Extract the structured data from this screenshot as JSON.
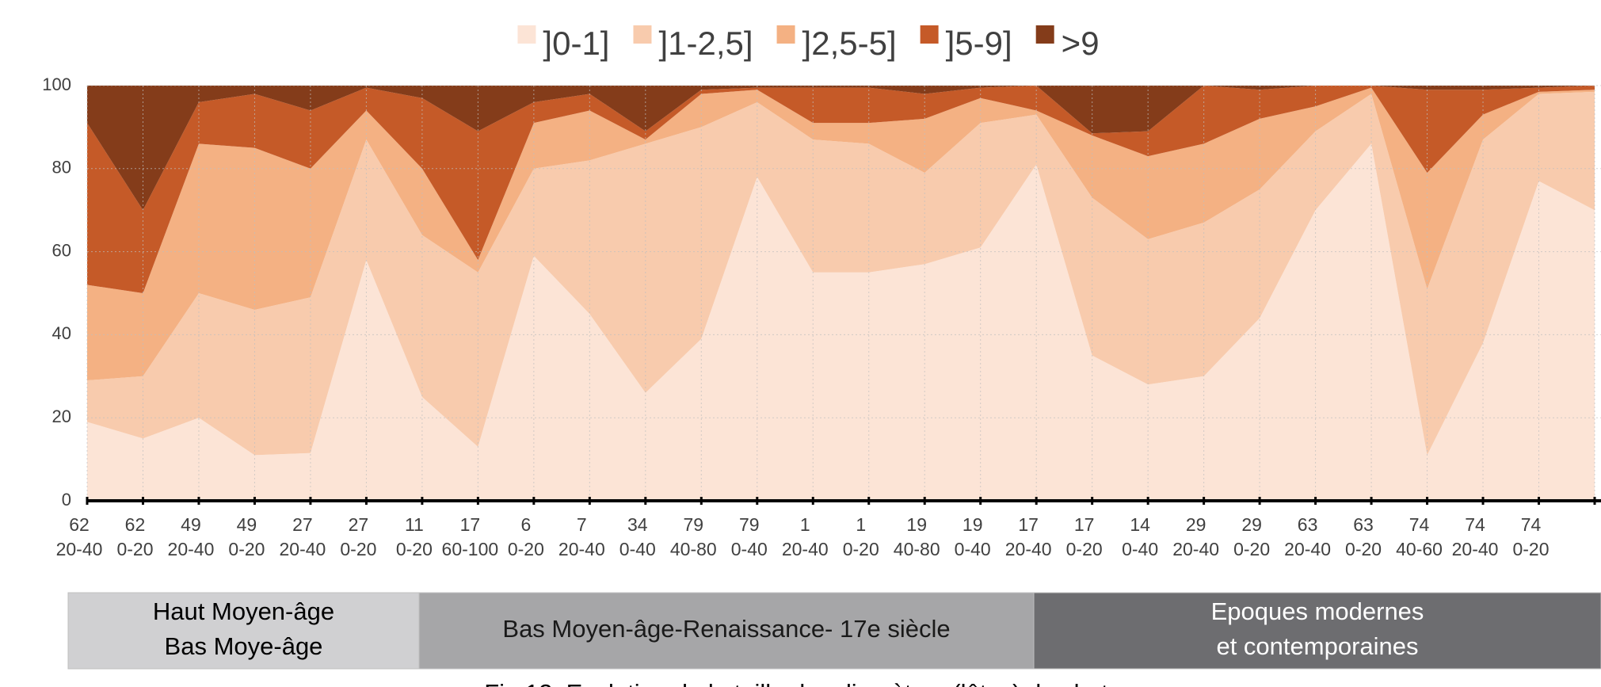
{
  "chart_data": {
    "type": "stacked_area",
    "categories": [
      [
        "62",
        "20-40"
      ],
      [
        "62",
        "0-20"
      ],
      [
        "49",
        "20-40"
      ],
      [
        "49",
        "0-20"
      ],
      [
        "27",
        "20-40"
      ],
      [
        "27",
        "0-20"
      ],
      [
        "11",
        "0-20"
      ],
      [
        "17",
        "60-100"
      ],
      [
        "6",
        "0-20"
      ],
      [
        "7",
        "20-40"
      ],
      [
        "34",
        "0-40"
      ],
      [
        "79",
        "40-80"
      ],
      [
        "79",
        "0-40"
      ],
      [
        "1",
        "20-40"
      ],
      [
        "1",
        "0-20"
      ],
      [
        "19",
        "40-80"
      ],
      [
        "19",
        "0-40"
      ],
      [
        "17",
        "20-40"
      ],
      [
        "17",
        "0-20"
      ],
      [
        "14",
        "0-40"
      ],
      [
        "29",
        "20-40"
      ],
      [
        "29",
        "0-20"
      ],
      [
        "63",
        "20-40"
      ],
      [
        "63",
        "0-20"
      ],
      [
        "74",
        "40-60"
      ],
      [
        "74",
        "20-40"
      ],
      [
        "74",
        "0-20"
      ],
      null
    ],
    "series": [
      {
        "name": "]0-1]",
        "color": "#fce4d6",
        "values": [
          19,
          15,
          20,
          11,
          11.5,
          58,
          25,
          13,
          59,
          45,
          26,
          39,
          78,
          55,
          55,
          57,
          61,
          81,
          35,
          28,
          30,
          44,
          70,
          86,
          11,
          38,
          77,
          70
        ]
      },
      {
        "name": "]1-2,5]",
        "color": "#f8cbad",
        "values": [
          10,
          15,
          30,
          35,
          37.5,
          29,
          39,
          42,
          21,
          37,
          60,
          51,
          18,
          32,
          31,
          22,
          30,
          12,
          38,
          35,
          37,
          31,
          19,
          12,
          40,
          49,
          21,
          28.5
        ]
      },
      {
        "name": "]2,5-5]",
        "color": "#f4b183",
        "values": [
          23,
          20,
          36,
          39,
          31,
          7,
          16,
          3,
          11,
          12,
          1,
          8,
          3,
          4,
          5,
          13,
          6,
          1,
          15,
          20,
          19,
          17,
          6,
          1.5,
          28,
          6,
          0.5,
          0.5
        ]
      },
      {
        "name": "]5-9]",
        "color": "#c55a28",
        "values": [
          39,
          20,
          10,
          13,
          14,
          5.5,
          17,
          31,
          5,
          4,
          2,
          1,
          0.5,
          8.5,
          8.5,
          6,
          2.5,
          6,
          0.5,
          6,
          14,
          7,
          5,
          0.5,
          20,
          6,
          1,
          1
        ]
      },
      {
        "name": ">9",
        "color": "#843c1a",
        "values": [
          9,
          30,
          4,
          2,
          6,
          0.5,
          3,
          11,
          4,
          2,
          11,
          1,
          0.5,
          0.5,
          0.5,
          2,
          0.5,
          0,
          11.5,
          11,
          0,
          1,
          0,
          0,
          1,
          1,
          0.5,
          0
        ]
      }
    ],
    "ylim": [
      0,
      100
    ],
    "yticks": [
      0,
      20,
      40,
      60,
      80,
      100
    ],
    "grid": true,
    "legend": "top",
    "periods": [
      [
        "Haut Moyen-âge",
        "Bas Moye-âge"
      ],
      [
        "Bas Moyen-âge-Renaissance- 17e siècle"
      ],
      [
        "Epoques modernes",
        "et contemporaines"
      ]
    ],
    "caption": "Fig.12. Evolution de la taille des diamètres (lûtes) des bat"
  }
}
